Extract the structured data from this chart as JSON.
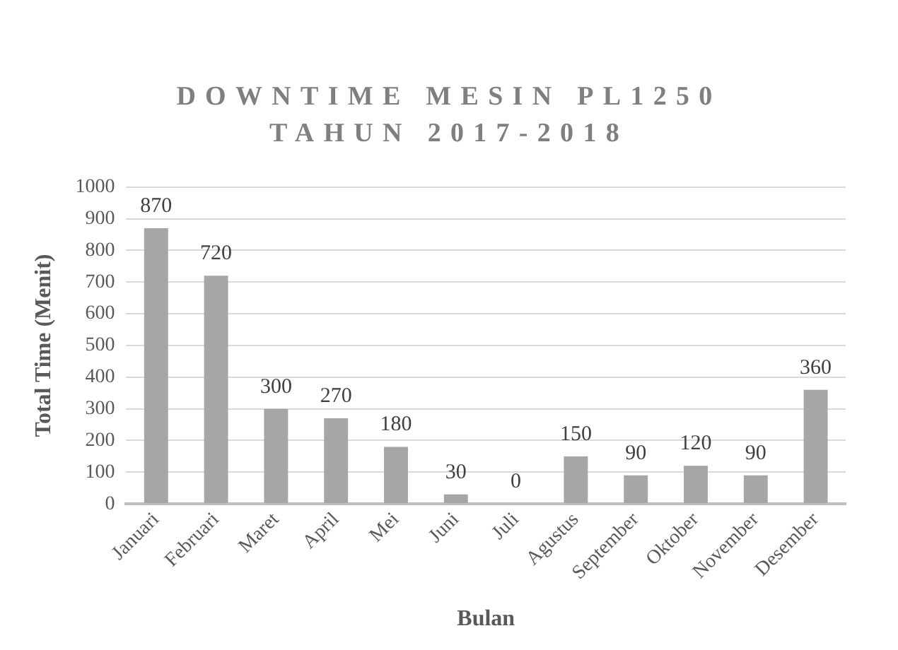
{
  "chart_data": {
    "type": "bar",
    "title": "DOWNTIME MESIN PL1250 TAHUN 2017-2018",
    "xlabel": "Bulan",
    "ylabel": "Total Time (Menit)",
    "categories": [
      "Januari",
      "Februari",
      "Maret",
      "April",
      "Mei",
      "Juni",
      "Juli",
      "Agustus",
      "September",
      "Oktober",
      "November",
      "Desember"
    ],
    "values": [
      870,
      720,
      300,
      270,
      180,
      30,
      0,
      150,
      90,
      120,
      90,
      360
    ],
    "color": "#a6a6a6",
    "ylim": [
      0,
      1000
    ],
    "yticks": [
      0,
      100,
      200,
      300,
      400,
      500,
      600,
      700,
      800,
      900,
      1000
    ],
    "grid": "y",
    "legend": false,
    "data_labels": true
  }
}
